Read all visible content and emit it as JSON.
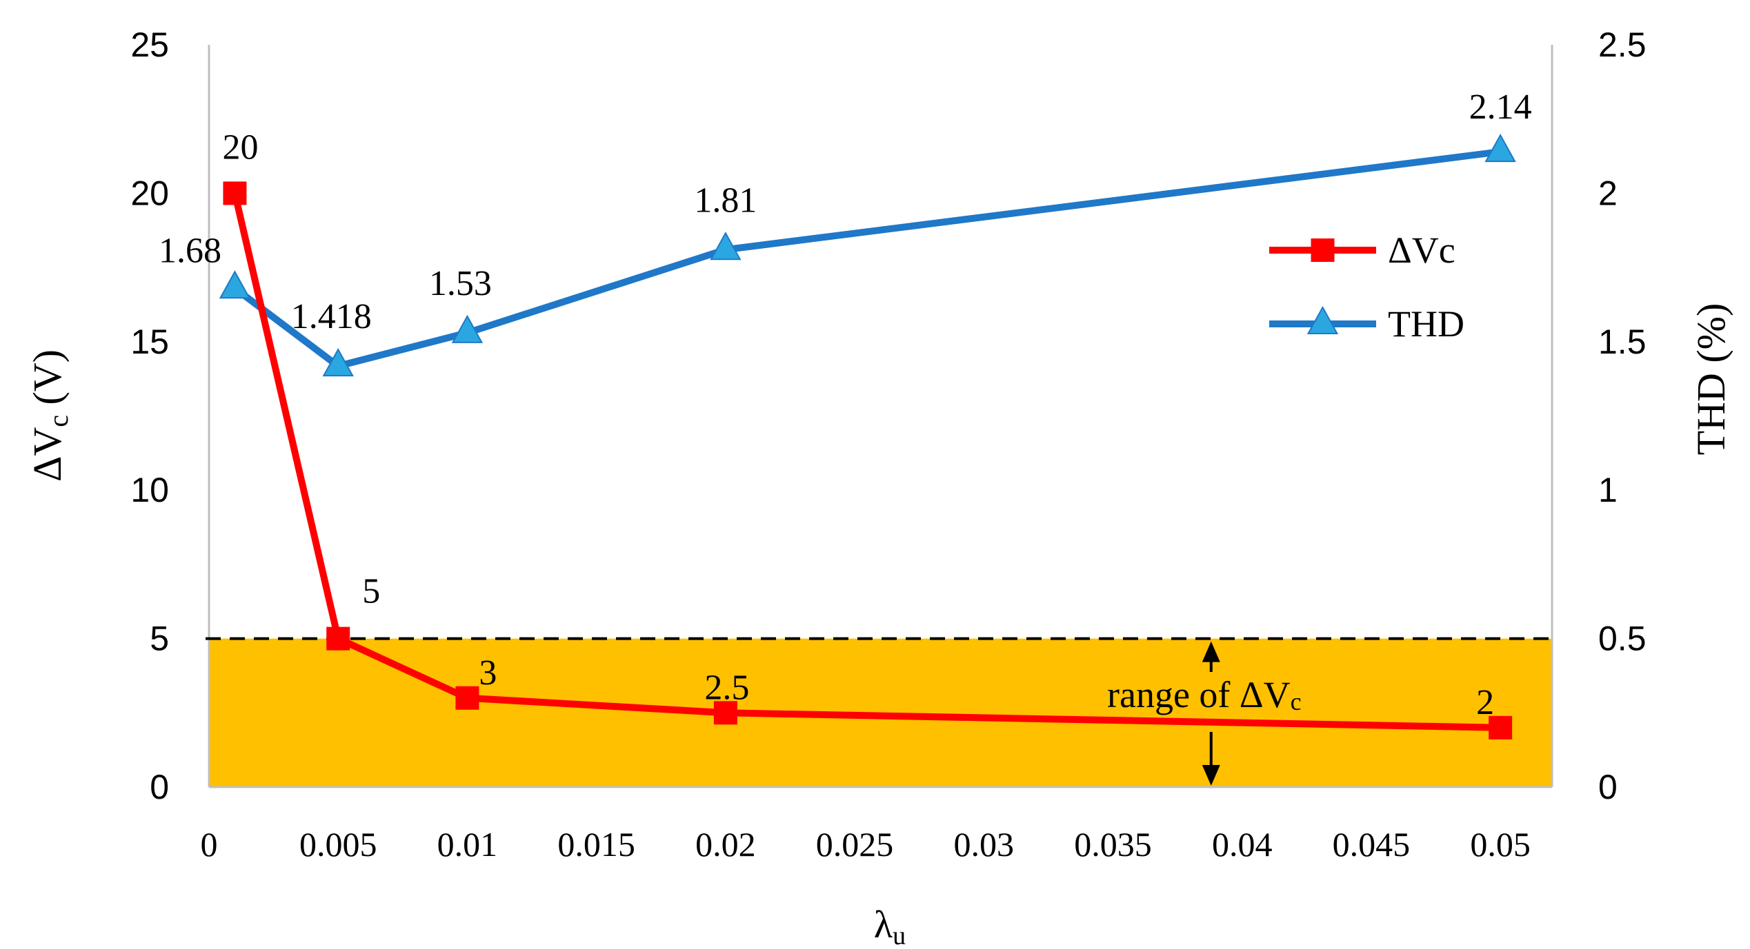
{
  "chart_data": {
    "type": "line",
    "x": [
      0.001,
      0.005,
      0.01,
      0.02,
      0.05
    ],
    "series": [
      {
        "name": "ΔVc",
        "axis": "left",
        "color": "#ff0000",
        "marker": "square",
        "values": [
          20,
          5,
          3,
          2.5,
          2
        ],
        "labels": [
          "20",
          "5",
          "3",
          "2.5",
          "2"
        ]
      },
      {
        "name": "THD",
        "axis": "right",
        "color": "#1f78c8",
        "marker_color": "#2aa7e0",
        "marker": "triangle",
        "values": [
          1.68,
          1.418,
          1.53,
          1.81,
          2.14
        ],
        "labels": [
          "1.68",
          "1.418",
          "1.53",
          "1.81",
          "2.14"
        ]
      }
    ],
    "xlabel": {
      "main": "λ",
      "sub": "u"
    },
    "ylabel_left": {
      "delta": "ΔV",
      "sub": "c",
      "rest": " (V)"
    },
    "ylabel_right": "THD (%)",
    "xlim": [
      0,
      0.052
    ],
    "ylim_left": [
      0,
      25
    ],
    "ylim_right": [
      0,
      2.5
    ],
    "x_ticks": [
      "0",
      "0.005",
      "0.01",
      "0.015",
      "0.02",
      "0.025",
      "0.03",
      "0.035",
      "0.04",
      "0.045",
      "0.05"
    ],
    "y_left_ticks": [
      "0",
      "5",
      "10",
      "15",
      "20",
      "25"
    ],
    "y_right_ticks": [
      "0",
      "0.5",
      "1",
      "1.5",
      "2",
      "2.5"
    ],
    "grid": false,
    "legend": {
      "position": "right",
      "entries": [
        "ΔVc",
        "THD"
      ]
    },
    "range_band": {
      "y_from": 0,
      "y_to": 5,
      "color": "#ffc000",
      "threshold_line": 5,
      "label_main": "range of ΔV",
      "label_sub": "c",
      "arrow_x": 0.0388
    }
  }
}
